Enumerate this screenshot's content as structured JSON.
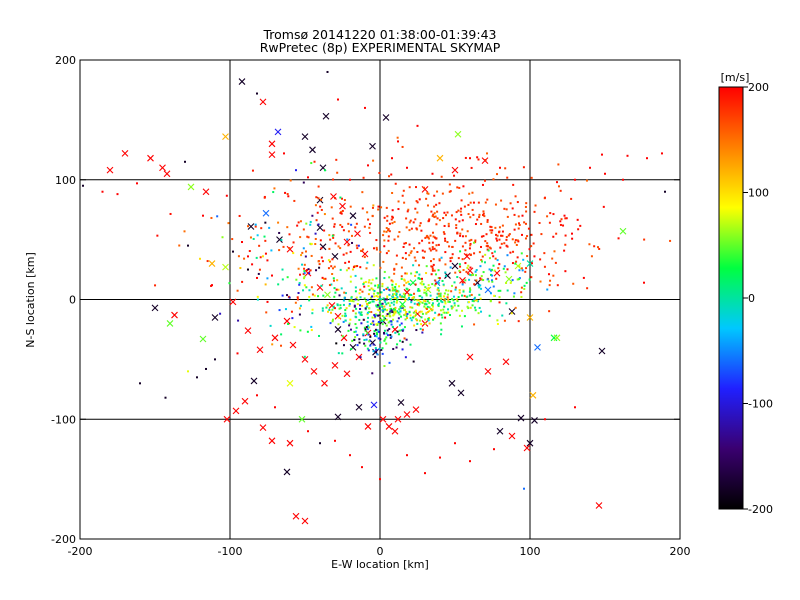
{
  "chart_data": {
    "type": "scatter",
    "title": "Tromsø 20141220 01:38:00-01:39:43",
    "subtitle": "RwPretec (8p) EXPERIMENTAL SKYMAP",
    "xlabel": "E-W location [km]",
    "ylabel": "N-S location [km]",
    "xlim": [
      -200,
      200
    ],
    "ylim": [
      -200,
      200
    ],
    "xticks": [
      "-200",
      "-100",
      "0",
      "100",
      "200"
    ],
    "yticks": [
      "-200",
      "-100",
      "0",
      "100",
      "200"
    ],
    "grid_lines": [
      -100,
      0,
      100
    ],
    "grid": true,
    "colorbar": {
      "label": "[m/s]",
      "range": [
        -200,
        200
      ],
      "ticks": [
        "-200",
        "-100",
        "0",
        "100",
        "200"
      ],
      "colors": [
        "#000000",
        "#3a0070",
        "#2020ff",
        "#00c8ff",
        "#00ff40",
        "#ffff00",
        "#ff8000",
        "#ff0000"
      ]
    },
    "markers": {
      "small": "dot",
      "large": "x"
    },
    "series": [
      {
        "marker": "x",
        "points": [
          [
            -92,
            182,
            -180
          ],
          [
            -78,
            165,
            200
          ],
          [
            -50,
            136,
            -180
          ],
          [
            -36,
            153,
            -180
          ],
          [
            -5,
            128,
            -180
          ],
          [
            4,
            152,
            -180
          ],
          [
            -170,
            122,
            200
          ],
          [
            -153,
            118,
            200
          ],
          [
            -145,
            110,
            200
          ],
          [
            -142,
            105,
            200
          ],
          [
            -180,
            108,
            200
          ],
          [
            -126,
            94,
            60
          ],
          [
            -116,
            90,
            200
          ],
          [
            -103,
            136,
            120
          ],
          [
            -72,
            130,
            200
          ],
          [
            -72,
            121,
            200
          ],
          [
            -68,
            140,
            -90
          ],
          [
            -38,
            110,
            -180
          ],
          [
            -45,
            125,
            -180
          ],
          [
            -40,
            83,
            -180
          ],
          [
            -31,
            86,
            200
          ],
          [
            -25,
            78,
            200
          ],
          [
            -18,
            70,
            -180
          ],
          [
            40,
            118,
            120
          ],
          [
            52,
            138,
            60
          ],
          [
            70,
            116,
            200
          ],
          [
            50,
            108,
            200
          ],
          [
            30,
            92,
            200
          ],
          [
            -112,
            30,
            120
          ],
          [
            -103,
            27,
            70
          ],
          [
            -86,
            61,
            -180
          ],
          [
            -76,
            72,
            -60
          ],
          [
            -67,
            50,
            -180
          ],
          [
            -60,
            42,
            200
          ],
          [
            -40,
            60,
            -180
          ],
          [
            -38,
            44,
            -180
          ],
          [
            -30,
            36,
            -180
          ],
          [
            -22,
            48,
            200
          ],
          [
            -15,
            55,
            200
          ],
          [
            -10,
            38,
            200
          ],
          [
            -48,
            22,
            200
          ],
          [
            -40,
            10,
            200
          ],
          [
            -35,
            4,
            60
          ],
          [
            -32,
            -5,
            200
          ],
          [
            -28,
            -14,
            200
          ],
          [
            -28,
            -25,
            -180
          ],
          [
            -24,
            -32,
            200
          ],
          [
            -18,
            -40,
            -180
          ],
          [
            -14,
            -48,
            200
          ],
          [
            -8,
            -28,
            200
          ],
          [
            -5,
            -36,
            -180
          ],
          [
            -3,
            -44,
            -180
          ],
          [
            2,
            -18,
            -180
          ],
          [
            8,
            -10,
            60
          ],
          [
            10,
            -25,
            200
          ],
          [
            15,
            -4,
            30
          ],
          [
            18,
            6,
            200
          ],
          [
            22,
            14,
            30
          ],
          [
            25,
            -12,
            200
          ],
          [
            30,
            -20,
            200
          ],
          [
            32,
            8,
            60
          ],
          [
            38,
            14,
            -60
          ],
          [
            45,
            20,
            -180
          ],
          [
            50,
            28,
            -180
          ],
          [
            55,
            16,
            200
          ],
          [
            60,
            24,
            200
          ],
          [
            65,
            14,
            -180
          ],
          [
            72,
            8,
            -60
          ],
          [
            78,
            22,
            200
          ],
          [
            86,
            17,
            60
          ],
          [
            92,
            28,
            70
          ],
          [
            58,
            36,
            200
          ],
          [
            100,
            30,
            0
          ],
          [
            -150,
            -7,
            -180
          ],
          [
            -140,
            -20,
            50
          ],
          [
            -137,
            -13,
            200
          ],
          [
            -110,
            -15,
            -180
          ],
          [
            -98,
            -2,
            200
          ],
          [
            -118,
            -33,
            50
          ],
          [
            -88,
            -26,
            200
          ],
          [
            -80,
            -42,
            200
          ],
          [
            -70,
            -32,
            200
          ],
          [
            -62,
            -18,
            200
          ],
          [
            -58,
            -38,
            200
          ],
          [
            -50,
            -50,
            200
          ],
          [
            -44,
            -60,
            200
          ],
          [
            -37,
            -70,
            200
          ],
          [
            -30,
            -55,
            200
          ],
          [
            -22,
            -62,
            200
          ],
          [
            -60,
            -70,
            80
          ],
          [
            -84,
            -68,
            -180
          ],
          [
            -90,
            -85,
            200
          ],
          [
            -96,
            -93,
            200
          ],
          [
            -102,
            -100,
            200
          ],
          [
            -78,
            -107,
            200
          ],
          [
            -72,
            -118,
            200
          ],
          [
            -60,
            -120,
            200
          ],
          [
            -62,
            -144,
            -180
          ],
          [
            -56,
            -181,
            200
          ],
          [
            -50,
            -185,
            200
          ],
          [
            -52,
            -100,
            50
          ],
          [
            -28,
            -98,
            -180
          ],
          [
            -14,
            -90,
            -180
          ],
          [
            -8,
            -106,
            200
          ],
          [
            -4,
            -88,
            -90
          ],
          [
            2,
            -100,
            200
          ],
          [
            6,
            -106,
            200
          ],
          [
            10,
            -110,
            200
          ],
          [
            12,
            -100,
            200
          ],
          [
            18,
            -96,
            200
          ],
          [
            24,
            -92,
            200
          ],
          [
            14,
            -86,
            -180
          ],
          [
            48,
            -70,
            -180
          ],
          [
            54,
            -78,
            -180
          ],
          [
            60,
            -48,
            200
          ],
          [
            72,
            -60,
            200
          ],
          [
            84,
            -52,
            200
          ],
          [
            88,
            -10,
            -180
          ],
          [
            100,
            -15,
            120
          ],
          [
            105,
            -40,
            -60
          ],
          [
            116,
            -32,
            30
          ],
          [
            102,
            -80,
            120
          ],
          [
            80,
            -110,
            -180
          ],
          [
            88,
            -114,
            200
          ],
          [
            100,
            -120,
            -180
          ],
          [
            98,
            -124,
            200
          ],
          [
            103,
            -101,
            -180
          ],
          [
            94,
            -99,
            -180
          ],
          [
            148,
            -43,
            -180
          ],
          [
            162,
            57,
            50
          ],
          [
            146,
            -172,
            200
          ],
          [
            118,
            -32,
            60
          ]
        ]
      },
      {
        "marker": "dot",
        "points": [
          [
            -198,
            95,
            -180
          ],
          [
            -175,
            88,
            200
          ],
          [
            -162,
            97,
            200
          ],
          [
            -130,
            115,
            -180
          ],
          [
            -118,
            70,
            200
          ],
          [
            -105,
            52,
            60
          ],
          [
            -98,
            40,
            -180
          ],
          [
            -92,
            48,
            200
          ],
          [
            -88,
            36,
            200
          ],
          [
            -82,
            18,
            200
          ],
          [
            -75,
            -2,
            200
          ],
          [
            -110,
            -50,
            -180
          ],
          [
            -128,
            -60,
            80
          ],
          [
            -143,
            -82,
            -180
          ],
          [
            -160,
            -70,
            -180
          ],
          [
            -122,
            -65,
            -180
          ],
          [
            -116,
            -58,
            -180
          ],
          [
            -95,
            -45,
            200
          ],
          [
            -82,
            -80,
            200
          ],
          [
            -70,
            -90,
            200
          ],
          [
            -48,
            -110,
            200
          ],
          [
            -40,
            -120,
            -180
          ],
          [
            -30,
            -118,
            200
          ],
          [
            -20,
            -130,
            200
          ],
          [
            -12,
            -140,
            200
          ],
          [
            0,
            -150,
            200
          ],
          [
            18,
            -130,
            200
          ],
          [
            30,
            -145,
            200
          ],
          [
            40,
            -132,
            200
          ],
          [
            50,
            -120,
            200
          ],
          [
            60,
            -135,
            200
          ],
          [
            76,
            -125,
            200
          ],
          [
            96,
            -158,
            -60
          ],
          [
            110,
            -100,
            200
          ],
          [
            130,
            -90,
            200
          ],
          [
            140,
            110,
            200
          ],
          [
            150,
            105,
            200
          ],
          [
            162,
            100,
            200
          ],
          [
            178,
            118,
            200
          ],
          [
            188,
            122,
            200
          ],
          [
            190,
            90,
            -180
          ],
          [
            165,
            120,
            200
          ],
          [
            148,
            121,
            200
          ],
          [
            130,
            100,
            200
          ],
          [
            118,
            98,
            200
          ],
          [
            -82,
            172,
            -180
          ],
          [
            -35,
            190,
            -180
          ],
          [
            -28,
            167,
            200
          ],
          [
            -10,
            160,
            200
          ],
          [
            12,
            132,
            200
          ],
          [
            25,
            145,
            200
          ],
          [
            -64,
            122,
            200
          ],
          [
            -56,
            108,
            -90
          ],
          [
            -48,
            102,
            200
          ],
          [
            -20,
            100,
            200
          ],
          [
            -8,
            112,
            200
          ],
          [
            8,
            118,
            200
          ],
          [
            18,
            110,
            200
          ],
          [
            35,
            105,
            200
          ],
          [
            60,
            118,
            200
          ],
          [
            80,
            110,
            200
          ],
          [
            -185,
            90,
            200
          ],
          [
            -202,
            80,
            200
          ],
          [
            95,
            70,
            200
          ],
          [
            110,
            85,
            200
          ],
          [
            123,
            70,
            200
          ],
          [
            128,
            55,
            200
          ],
          [
            -128,
            45,
            -180
          ],
          [
            -112,
            12,
            200
          ],
          [
            -120,
            34,
            100
          ],
          [
            -72,
            20,
            200
          ],
          [
            -65,
            25,
            0
          ]
        ]
      }
    ]
  }
}
